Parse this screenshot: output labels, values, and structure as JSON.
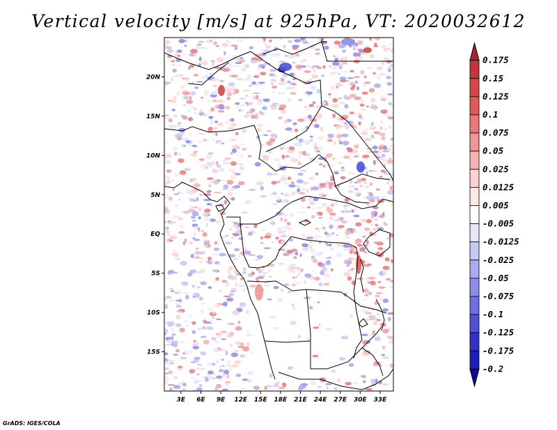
{
  "title": "Vertical velocity [m/s] at 925hPa, VT: 2020032612",
  "credit": "GrADS: IGES/COLA",
  "map": {
    "lat_labels": [
      {
        "text": "20N",
        "lat": 20
      },
      {
        "text": "15N",
        "lat": 15
      },
      {
        "text": "10N",
        "lat": 10
      },
      {
        "text": "5N",
        "lat": 5
      },
      {
        "text": "EQ",
        "lat": 0
      },
      {
        "text": "5S",
        "lat": -5
      },
      {
        "text": "10S",
        "lat": -10
      },
      {
        "text": "15S",
        "lat": -15
      }
    ],
    "lon_labels": [
      {
        "text": "3E",
        "lon": 3
      },
      {
        "text": "6E",
        "lon": 6
      },
      {
        "text": "9E",
        "lon": 9
      },
      {
        "text": "12E",
        "lon": 12
      },
      {
        "text": "15E",
        "lon": 15
      },
      {
        "text": "18E",
        "lon": 18
      },
      {
        "text": "21E",
        "lon": 21
      },
      {
        "text": "24E",
        "lon": 24
      },
      {
        "text": "27E",
        "lon": 27
      },
      {
        "text": "30E",
        "lon": 30
      },
      {
        "text": "33E",
        "lon": 33
      }
    ],
    "lon_range": [
      0.5,
      35.0
    ],
    "lat_range": [
      -20.0,
      25.0
    ]
  },
  "colorbar": {
    "levels": [
      "0.175",
      "0.15",
      "0.125",
      "0.1",
      "0.075",
      "0.05",
      "0.025",
      "0.0125",
      "0.005",
      "-0.005",
      "-0.0125",
      "-0.025",
      "-0.05",
      "-0.075",
      "-0.1",
      "-0.125",
      "-0.175",
      "-0.2"
    ],
    "colors": [
      "#b41e28",
      "#c8323a",
      "#d7464b",
      "#e15a5a",
      "#eb7878",
      "#f09696",
      "#f5b4b4",
      "#fad2d2",
      "#fde8e8",
      "#ffffff",
      "#e6e6fa",
      "#c8c8f5",
      "#aaaaf0",
      "#8c8ceb",
      "#6e6ee1",
      "#5050d7",
      "#3232c8",
      "#1e1ebe",
      "#0a0aa0"
    ]
  }
}
